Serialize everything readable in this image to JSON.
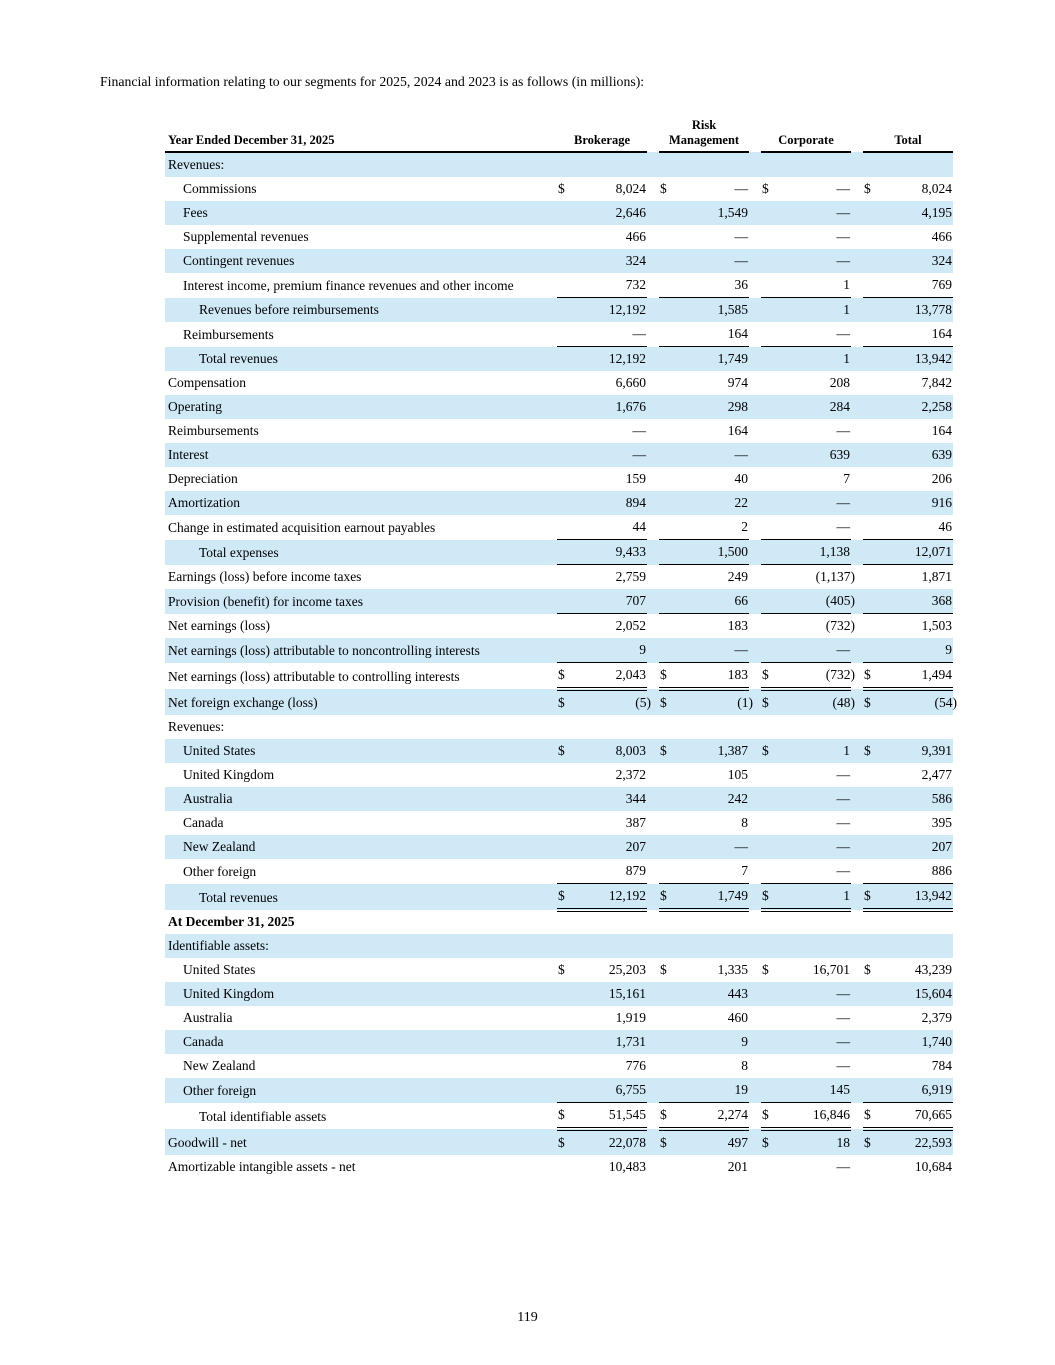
{
  "intro": "Financial information relating to our segments for 2025, 2024 and 2023 is as follows (in millions):",
  "page_number": "119",
  "colors": {
    "row_shading": "#cfe9f7",
    "text": "#000000",
    "rule": "#000000"
  },
  "table": {
    "label_header": "Year Ended December 31, 2025",
    "columns": [
      "Brokerage",
      "Risk Management",
      "Corporate",
      "Total"
    ],
    "rows": [
      {
        "label": "Revenues:",
        "indent": 0,
        "shaded": true,
        "section": true
      },
      {
        "label": "Commissions",
        "indent": 1,
        "shaded": false,
        "dollar": true,
        "values": [
          "8,024",
          "—",
          "—",
          "8,024"
        ]
      },
      {
        "label": "Fees",
        "indent": 1,
        "shaded": true,
        "values": [
          "2,646",
          "1,549",
          "—",
          "4,195"
        ]
      },
      {
        "label": "Supplemental revenues",
        "indent": 1,
        "shaded": false,
        "values": [
          "466",
          "—",
          "—",
          "466"
        ]
      },
      {
        "label": "Contingent revenues",
        "indent": 1,
        "shaded": true,
        "values": [
          "324",
          "—",
          "—",
          "324"
        ]
      },
      {
        "label": "Interest income, premium finance revenues and other income",
        "indent": 1,
        "shaded": false,
        "values": [
          "732",
          "36",
          "1",
          "769"
        ],
        "border": "bottom"
      },
      {
        "label": "Revenues before reimbursements",
        "indent": 2,
        "shaded": true,
        "values": [
          "12,192",
          "1,585",
          "1",
          "13,778"
        ]
      },
      {
        "label": "Reimbursements",
        "indent": 1,
        "shaded": false,
        "values": [
          "—",
          "164",
          "—",
          "164"
        ],
        "border": "bottom"
      },
      {
        "label": "Total revenues",
        "indent": 2,
        "shaded": true,
        "values": [
          "12,192",
          "1,749",
          "1",
          "13,942"
        ]
      },
      {
        "label": "Compensation",
        "indent": 0,
        "shaded": false,
        "values": [
          "6,660",
          "974",
          "208",
          "7,842"
        ]
      },
      {
        "label": "Operating",
        "indent": 0,
        "shaded": true,
        "values": [
          "1,676",
          "298",
          "284",
          "2,258"
        ]
      },
      {
        "label": "Reimbursements",
        "indent": 0,
        "shaded": false,
        "values": [
          "—",
          "164",
          "—",
          "164"
        ]
      },
      {
        "label": "Interest",
        "indent": 0,
        "shaded": true,
        "values": [
          "—",
          "—",
          "639",
          "639"
        ]
      },
      {
        "label": "Depreciation",
        "indent": 0,
        "shaded": false,
        "values": [
          "159",
          "40",
          "7",
          "206"
        ]
      },
      {
        "label": "Amortization",
        "indent": 0,
        "shaded": true,
        "values": [
          "894",
          "22",
          "—",
          "916"
        ]
      },
      {
        "label": "Change in estimated acquisition earnout payables",
        "indent": 0,
        "shaded": false,
        "values": [
          "44",
          "2",
          "—",
          "46"
        ],
        "border": "bottom"
      },
      {
        "label": "Total expenses",
        "indent": 2,
        "shaded": true,
        "values": [
          "9,433",
          "1,500",
          "1,138",
          "12,071"
        ],
        "border": "bottom"
      },
      {
        "label": "Earnings (loss) before income taxes",
        "indent": 0,
        "shaded": false,
        "values": [
          "2,759",
          "249",
          "(1,137)",
          "1,871"
        ]
      },
      {
        "label": "Provision (benefit) for income taxes",
        "indent": 0,
        "shaded": true,
        "values": [
          "707",
          "66",
          "(405)",
          "368"
        ],
        "border": "bottom"
      },
      {
        "label": "Net earnings (loss)",
        "indent": 0,
        "shaded": false,
        "values": [
          "2,052",
          "183",
          "(732)",
          "1,503"
        ]
      },
      {
        "label": "Net earnings (loss) attributable to noncontrolling interests",
        "indent": 0,
        "shaded": true,
        "values": [
          "9",
          "—",
          "—",
          "9"
        ],
        "border": "bottom"
      },
      {
        "label": "Net earnings (loss) attributable to controlling interests",
        "indent": 0,
        "shaded": false,
        "dollar": true,
        "values": [
          "2,043",
          "183",
          "(732)",
          "1,494"
        ],
        "border": "double"
      },
      {
        "label": "Net foreign exchange (loss)",
        "indent": 0,
        "shaded": true,
        "dollar": true,
        "values": [
          "(5)",
          "(1)",
          "(48)",
          "(54)"
        ]
      },
      {
        "label": "Revenues:",
        "indent": 0,
        "shaded": false,
        "section": true
      },
      {
        "label": "United States",
        "indent": 1,
        "shaded": true,
        "dollar": true,
        "values": [
          "8,003",
          "1,387",
          "1",
          "9,391"
        ]
      },
      {
        "label": "United Kingdom",
        "indent": 1,
        "shaded": false,
        "values": [
          "2,372",
          "105",
          "—",
          "2,477"
        ]
      },
      {
        "label": "Australia",
        "indent": 1,
        "shaded": true,
        "values": [
          "344",
          "242",
          "—",
          "586"
        ]
      },
      {
        "label": "Canada",
        "indent": 1,
        "shaded": false,
        "values": [
          "387",
          "8",
          "—",
          "395"
        ]
      },
      {
        "label": "New Zealand",
        "indent": 1,
        "shaded": true,
        "values": [
          "207",
          "—",
          "—",
          "207"
        ]
      },
      {
        "label": "Other foreign",
        "indent": 1,
        "shaded": false,
        "values": [
          "879",
          "7",
          "—",
          "886"
        ],
        "border": "bottom"
      },
      {
        "label": "Total revenues",
        "indent": 2,
        "shaded": true,
        "dollar": true,
        "values": [
          "12,192",
          "1,749",
          "1",
          "13,942"
        ],
        "border": "double"
      },
      {
        "label": "At December 31, 2025",
        "indent": 0,
        "shaded": false,
        "section": true,
        "bold": true
      },
      {
        "label": "Identifiable assets:",
        "indent": 0,
        "shaded": true,
        "section": true
      },
      {
        "label": "United States",
        "indent": 1,
        "shaded": false,
        "dollar": true,
        "values": [
          "25,203",
          "1,335",
          "16,701",
          "43,239"
        ]
      },
      {
        "label": "United Kingdom",
        "indent": 1,
        "shaded": true,
        "values": [
          "15,161",
          "443",
          "—",
          "15,604"
        ]
      },
      {
        "label": "Australia",
        "indent": 1,
        "shaded": false,
        "values": [
          "1,919",
          "460",
          "—",
          "2,379"
        ]
      },
      {
        "label": "Canada",
        "indent": 1,
        "shaded": true,
        "values": [
          "1,731",
          "9",
          "—",
          "1,740"
        ]
      },
      {
        "label": "New Zealand",
        "indent": 1,
        "shaded": false,
        "values": [
          "776",
          "8",
          "—",
          "784"
        ]
      },
      {
        "label": "Other foreign",
        "indent": 1,
        "shaded": true,
        "values": [
          "6,755",
          "19",
          "145",
          "6,919"
        ],
        "border": "bottom"
      },
      {
        "label": "Total identifiable assets",
        "indent": 2,
        "shaded": false,
        "dollar": true,
        "values": [
          "51,545",
          "2,274",
          "16,846",
          "70,665"
        ],
        "border": "double"
      },
      {
        "label": "Goodwill - net",
        "indent": 0,
        "shaded": true,
        "dollar": true,
        "values": [
          "22,078",
          "497",
          "18",
          "22,593"
        ]
      },
      {
        "label": "Amortizable intangible assets - net",
        "indent": 0,
        "shaded": false,
        "values": [
          "10,483",
          "201",
          "—",
          "10,684"
        ]
      }
    ]
  }
}
